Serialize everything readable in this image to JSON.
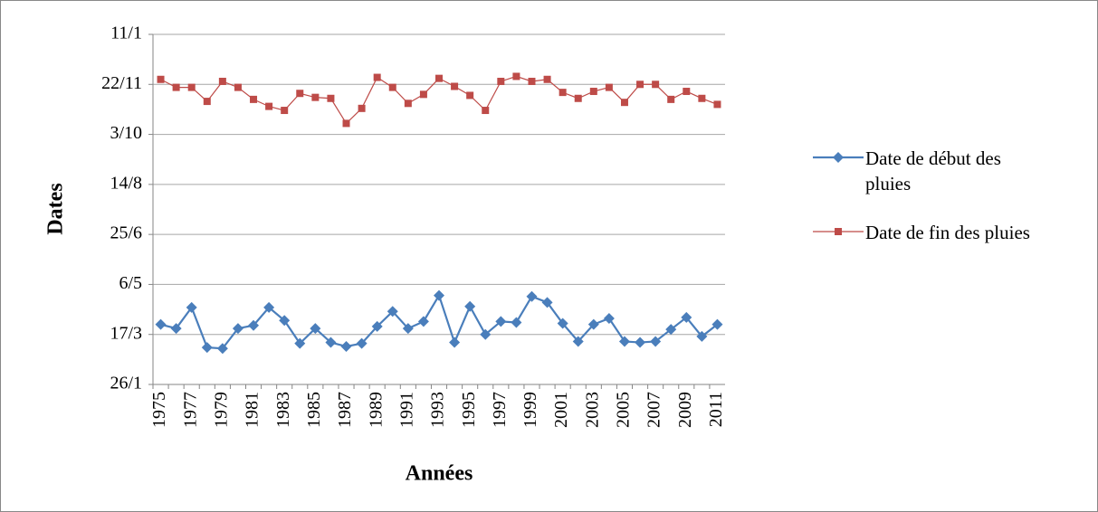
{
  "chart_data": {
    "type": "line",
    "x_label": "Années",
    "y_label": "Dates",
    "categories": [
      "1975",
      null,
      "1977",
      null,
      "1979",
      null,
      "1981",
      null,
      "1983",
      null,
      "1985",
      null,
      "1987",
      null,
      "1989",
      null,
      "1991",
      null,
      "1993",
      null,
      "1995",
      null,
      "1997",
      null,
      "1999",
      null,
      "2001",
      null,
      "2003",
      null,
      "2005",
      null,
      "2007",
      null,
      "2009",
      null,
      "2011"
    ],
    "series": [
      {
        "name": "Date de début des pluies",
        "color": "#4a7ebb",
        "marker": "diamond",
        "values": [
          86,
          82,
          103,
          63,
          62,
          82,
          85,
          103,
          90,
          67,
          82,
          68,
          64,
          67,
          84,
          99,
          82,
          89,
          115,
          68,
          104,
          76,
          89,
          88,
          114,
          108,
          87,
          69,
          86,
          92,
          69,
          68,
          69,
          81,
          93,
          74,
          86
        ]
      },
      {
        "name": "Date de fin des pluies",
        "color": "#be4b48",
        "marker": "square",
        "values": [
          331,
          323,
          323,
          309,
          329,
          323,
          311,
          304,
          300,
          317,
          313,
          312,
          287,
          302,
          333,
          323,
          307,
          316,
          332,
          324,
          315,
          300,
          329,
          334,
          329,
          331,
          318,
          312,
          319,
          323,
          308,
          326,
          326,
          311,
          319,
          312,
          306
        ]
      }
    ],
    "ylim": [
      26,
      376
    ],
    "yticks": [
      {
        "value": 26,
        "label": "26/1"
      },
      {
        "value": 76,
        "label": "17/3"
      },
      {
        "value": 126,
        "label": "6/5"
      },
      {
        "value": 176,
        "label": "25/6"
      },
      {
        "value": 226,
        "label": "14/8"
      },
      {
        "value": 276,
        "label": "3/10"
      },
      {
        "value": 326,
        "label": "22/11"
      },
      {
        "value": 376,
        "label": "11/1"
      }
    ],
    "grid": true,
    "legend": "right"
  }
}
